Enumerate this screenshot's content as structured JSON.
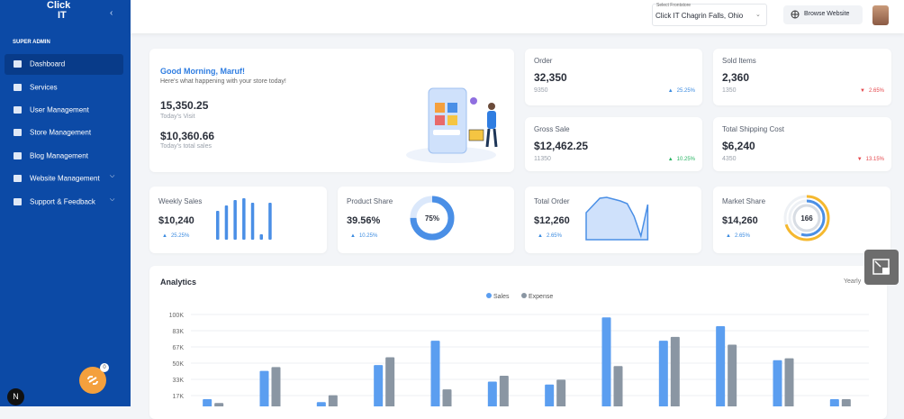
{
  "sidebar": {
    "logo": [
      "Click",
      "IT"
    ],
    "section": "SUPER ADMIN",
    "menu": [
      "Dashboard",
      "Services",
      "User Management",
      "Store Management",
      "Blog Management",
      "Website Management",
      "Support & Feedback"
    ],
    "badge": "0",
    "avatar_letter": "N"
  },
  "topbar": {
    "store_label": "Select Frontstore",
    "store": "Click IT Chagrin Falls, Ohio",
    "browse": "Browse Website"
  },
  "greeting": {
    "title": "Good Morning, Maruf!",
    "subtitle": "Here's what happening with your store today!",
    "stats": [
      {
        "value": "15,350.25",
        "label": "Today's Visit"
      },
      {
        "value": "$10,360.66",
        "label": "Today's total sales"
      }
    ]
  },
  "stat_cards": [
    {
      "label": "Order",
      "value": "32,350",
      "sub": "9350",
      "change": "25.25%",
      "trend": "up"
    },
    {
      "label": "Sold Items",
      "value": "2,360",
      "sub": "1350",
      "change": "2.65%",
      "trend": "down"
    },
    {
      "label": "Gross Sale",
      "value": "$12,462.25",
      "sub": "11350",
      "change": "10.25%",
      "trend": "up"
    },
    {
      "label": "Total Shipping Cost",
      "value": "$6,240",
      "sub": "4350",
      "change": "13.15%",
      "trend": "down"
    }
  ],
  "mini_cards": [
    {
      "label": "Weekly Sales",
      "value": "$10,240",
      "change": "25.25%",
      "bars": [
        32,
        38,
        44,
        46,
        41,
        6,
        41
      ]
    },
    {
      "label": "Product Share",
      "value": "39.56%",
      "change": "10.25%",
      "donut": {
        "value": 75,
        "label": "75%"
      }
    },
    {
      "label": "Total Order",
      "value": "$12,260",
      "change": "2.65%",
      "area": [
        30,
        38,
        46,
        47,
        45,
        43,
        40,
        26,
        4,
        39
      ]
    },
    {
      "label": "Market Share",
      "value": "$14,260",
      "change": "2.65%",
      "center": "166"
    }
  ],
  "analytics": {
    "title": "Analytics",
    "period": "Yearly",
    "chart_data": {
      "type": "bar",
      "series": [
        {
          "name": "Sales",
          "color": "#5b9ef0",
          "values": [
            13000,
            42000,
            10000,
            48000,
            73000,
            31000,
            28000,
            97000,
            73000,
            88000,
            53000,
            13000
          ]
        },
        {
          "name": "Expense",
          "color": "#8a96a3",
          "values": [
            9000,
            46000,
            17000,
            56000,
            23000,
            37000,
            33000,
            47000,
            77000,
            69000,
            55000,
            13000
          ]
        }
      ],
      "ylim": [
        0,
        100000
      ],
      "yticks": [
        {
          "value": 16667,
          "label": "17K"
        },
        {
          "value": 33333,
          "label": "33K"
        },
        {
          "value": 50000,
          "label": "50K"
        },
        {
          "value": 66667,
          "label": "67K"
        },
        {
          "value": 83333,
          "label": "83K"
        },
        {
          "value": 100000,
          "label": "100K"
        }
      ],
      "grid": true
    }
  }
}
